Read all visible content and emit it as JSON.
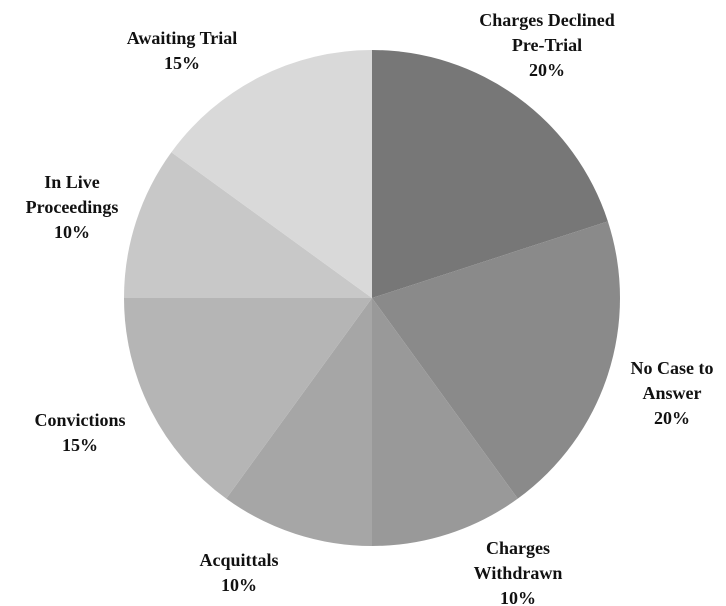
{
  "chart_data": {
    "type": "pie",
    "categories": [
      "Charges Declined Pre-Trial",
      "No Case to Answer",
      "Charges Withdrawn",
      "Acquittals",
      "Convictions",
      "In Live Proceedings",
      "Awaiting Trial"
    ],
    "values": [
      20,
      20,
      10,
      10,
      15,
      10,
      15
    ],
    "value_labels": [
      "20%",
      "20%",
      "10%",
      "10%",
      "15%",
      "10%",
      "15%"
    ],
    "colors": [
      "#777777",
      "#8a8a8a",
      "#999999",
      "#a6a6a6",
      "#b5b5b5",
      "#c8c8c8",
      "#d9d9d9"
    ]
  }
}
